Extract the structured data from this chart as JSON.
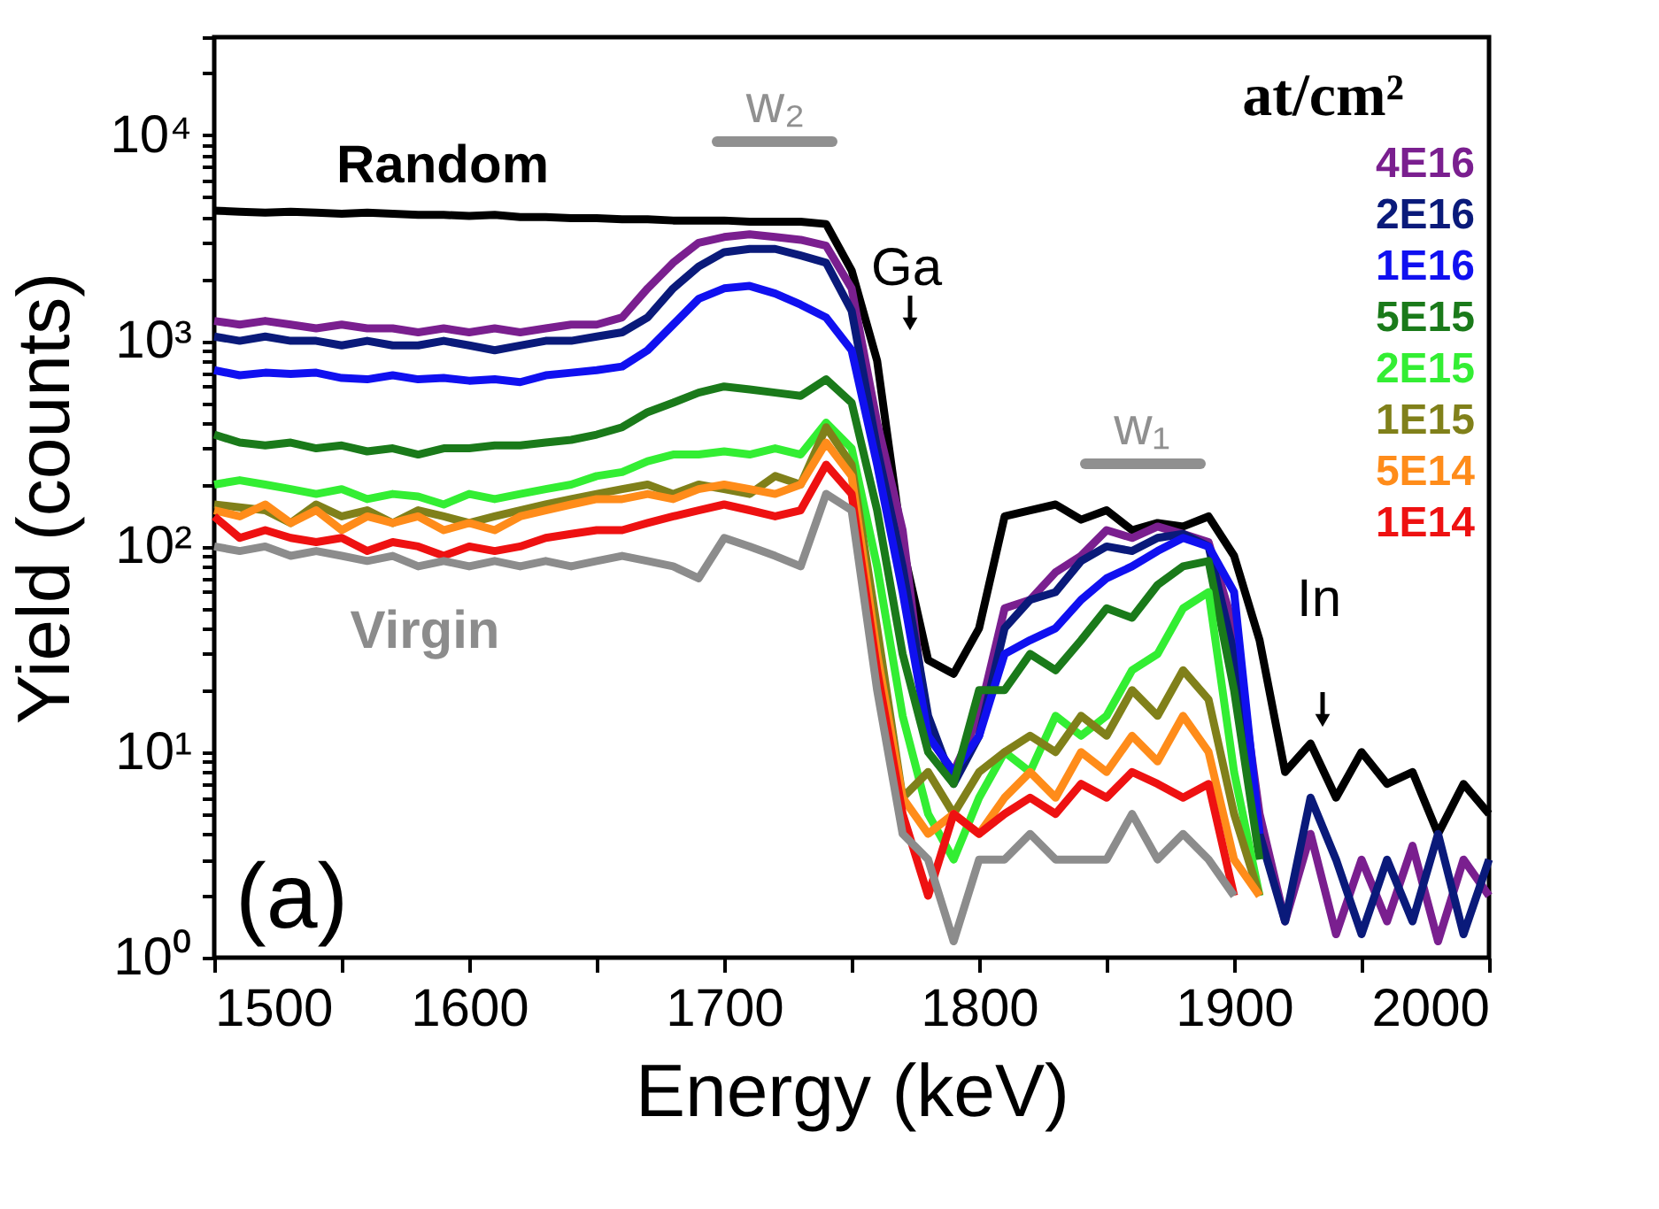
{
  "chart_data": {
    "type": "line",
    "xlabel": "Energy (keV)",
    "ylabel": "Yield (counts)",
    "legend_title": "at/cm²",
    "legend": "top right",
    "log": "y",
    "grid": false,
    "marker": "none",
    "line_style": "solid",
    "xlim": [
      1500,
      2000
    ],
    "ylim": [
      1,
      30000
    ],
    "xticks": [
      1500,
      {
        "value": 1550,
        "label": null
      },
      1600,
      {
        "value": 1650,
        "label": null
      },
      1700,
      {
        "value": 1750,
        "label": null
      },
      1800,
      {
        "value": 1850,
        "label": null
      },
      1900,
      {
        "value": 1950,
        "label": null
      },
      2000
    ],
    "yticks": [
      {
        "value": 1,
        "label": "10⁰"
      },
      {
        "value": 2,
        "label": null
      },
      {
        "value": 3,
        "label": null
      },
      {
        "value": 4,
        "label": null
      },
      {
        "value": 5,
        "label": null
      },
      {
        "value": 6,
        "label": null
      },
      {
        "value": 7,
        "label": null
      },
      {
        "value": 8,
        "label": null
      },
      {
        "value": 9,
        "label": null
      },
      {
        "value": 10,
        "label": "10¹"
      },
      {
        "value": 20,
        "label": null
      },
      {
        "value": 30,
        "label": null
      },
      {
        "value": 40,
        "label": null
      },
      {
        "value": 50,
        "label": null
      },
      {
        "value": 60,
        "label": null
      },
      {
        "value": 70,
        "label": null
      },
      {
        "value": 80,
        "label": null
      },
      {
        "value": 90,
        "label": null
      },
      {
        "value": 100,
        "label": "10²"
      },
      {
        "value": 200,
        "label": null
      },
      {
        "value": 300,
        "label": null
      },
      {
        "value": 400,
        "label": null
      },
      {
        "value": 500,
        "label": null
      },
      {
        "value": 600,
        "label": null
      },
      {
        "value": 700,
        "label": null
      },
      {
        "value": 800,
        "label": null
      },
      {
        "value": 900,
        "label": null
      },
      {
        "value": 1000,
        "label": "10³"
      },
      {
        "value": 2000,
        "label": null
      },
      {
        "value": 3000,
        "label": null
      },
      {
        "value": 4000,
        "label": null
      },
      {
        "value": 5000,
        "label": null
      },
      {
        "value": 6000,
        "label": null
      },
      {
        "value": 7000,
        "label": null
      },
      {
        "value": 8000,
        "label": null
      },
      {
        "value": 9000,
        "label": null
      },
      {
        "value": 10000,
        "label": "10⁴"
      },
      {
        "value": 20000,
        "label": null
      },
      {
        "value": 30000,
        "label": null
      }
    ],
    "x": [
      1500,
      1510,
      1520,
      1530,
      1540,
      1550,
      1560,
      1570,
      1580,
      1590,
      1600,
      1610,
      1620,
      1630,
      1640,
      1650,
      1660,
      1670,
      1680,
      1690,
      1700,
      1710,
      1720,
      1730,
      1740,
      1750,
      1760,
      1770,
      1780,
      1790,
      1800,
      1810,
      1820,
      1830,
      1840,
      1850,
      1860,
      1870,
      1880,
      1890,
      1900,
      1910,
      1920,
      1930,
      1940,
      1950,
      1960,
      1970,
      1980,
      1990,
      2000
    ],
    "series": [
      {
        "color": "#000000",
        "values": [
          4300,
          4250,
          4200,
          4250,
          4200,
          4150,
          4200,
          4150,
          4100,
          4100,
          4050,
          4100,
          4000,
          4000,
          3950,
          3950,
          3900,
          3900,
          3850,
          3850,
          3850,
          3800,
          3800,
          3800,
          3700,
          2200,
          800,
          100,
          28,
          24,
          40,
          140,
          150,
          160,
          135,
          150,
          120,
          130,
          125,
          140,
          90,
          35,
          8,
          11,
          6,
          10,
          7,
          8,
          4,
          7,
          5
        ]
      },
      {
        "name": "4E16",
        "color": "#7a1f8f",
        "values": [
          1250,
          1200,
          1250,
          1200,
          1150,
          1200,
          1150,
          1150,
          1100,
          1150,
          1100,
          1150,
          1100,
          1150,
          1200,
          1200,
          1300,
          1800,
          2400,
          3000,
          3200,
          3300,
          3200,
          3100,
          2900,
          1800,
          400,
          120,
          12,
          8,
          15,
          50,
          55,
          75,
          90,
          120,
          110,
          125,
          115,
          105,
          40,
          5,
          1.5,
          4,
          1.3,
          3,
          1.5,
          3.5,
          1.2,
          3,
          2
        ]
      },
      {
        "name": "2E16",
        "color": "#0a1a7a",
        "values": [
          1050,
          1000,
          1050,
          1000,
          1000,
          950,
          1000,
          950,
          950,
          1000,
          950,
          900,
          950,
          1000,
          1000,
          1050,
          1100,
          1300,
          1800,
          2300,
          2700,
          2800,
          2800,
          2600,
          2400,
          1400,
          300,
          80,
          15,
          7,
          12,
          40,
          55,
          60,
          85,
          100,
          95,
          110,
          115,
          100,
          30,
          4,
          1.5,
          6,
          3,
          1.3,
          3,
          1.5,
          4,
          1.3,
          3
        ]
      },
      {
        "name": "1E16",
        "color": "#1010f0",
        "values": [
          720,
          680,
          700,
          690,
          700,
          660,
          650,
          680,
          650,
          660,
          640,
          650,
          630,
          680,
          700,
          720,
          750,
          900,
          1200,
          1600,
          1800,
          1850,
          1700,
          1500,
          1300,
          900,
          250,
          60,
          12,
          8,
          12,
          30,
          35,
          40,
          55,
          70,
          80,
          95,
          110,
          100,
          60,
          4,
          null,
          null,
          null,
          null,
          null,
          null,
          null,
          null,
          null
        ]
      },
      {
        "name": "5E15",
        "color": "#1a7a1a",
        "values": [
          350,
          320,
          310,
          320,
          300,
          310,
          290,
          300,
          280,
          300,
          300,
          310,
          310,
          320,
          330,
          350,
          380,
          450,
          500,
          560,
          600,
          580,
          560,
          540,
          650,
          500,
          150,
          30,
          10,
          7,
          20,
          20,
          30,
          25,
          35,
          50,
          45,
          65,
          80,
          85,
          20,
          3,
          null,
          null,
          null,
          null,
          null,
          null,
          null,
          null,
          null
        ]
      },
      {
        "name": "2E15",
        "color": "#33ee33",
        "values": [
          200,
          210,
          200,
          190,
          180,
          190,
          170,
          180,
          175,
          160,
          180,
          170,
          180,
          190,
          200,
          220,
          230,
          260,
          280,
          280,
          290,
          280,
          300,
          280,
          400,
          300,
          80,
          15,
          5,
          3,
          6,
          10,
          8,
          15,
          12,
          15,
          25,
          30,
          50,
          60,
          8,
          2,
          null,
          null,
          null,
          null,
          null,
          null,
          null,
          null,
          null
        ]
      },
      {
        "name": "1E15",
        "color": "#80801a",
        "values": [
          160,
          155,
          150,
          130,
          160,
          140,
          150,
          130,
          150,
          140,
          130,
          140,
          150,
          160,
          170,
          180,
          190,
          200,
          180,
          200,
          190,
          180,
          220,
          200,
          380,
          250,
          40,
          6,
          8,
          5,
          8,
          10,
          12,
          10,
          15,
          12,
          20,
          15,
          25,
          18,
          5,
          2,
          null,
          null,
          null,
          null,
          null,
          null,
          null,
          null,
          null
        ]
      },
      {
        "name": "5E14",
        "color": "#ff8c1a",
        "values": [
          150,
          140,
          160,
          130,
          150,
          120,
          140,
          130,
          140,
          120,
          130,
          120,
          140,
          150,
          160,
          170,
          170,
          180,
          170,
          190,
          200,
          190,
          180,
          200,
          320,
          220,
          30,
          6,
          4,
          5,
          4,
          6,
          8,
          6,
          10,
          8,
          12,
          9,
          15,
          10,
          3,
          2,
          null,
          null,
          null,
          null,
          null,
          null,
          null,
          null,
          null
        ]
      },
      {
        "name": "1E14",
        "color": "#ee1111",
        "values": [
          140,
          110,
          120,
          110,
          105,
          110,
          95,
          105,
          100,
          90,
          100,
          95,
          100,
          110,
          115,
          120,
          120,
          130,
          140,
          150,
          160,
          150,
          140,
          150,
          250,
          180,
          25,
          5,
          2,
          5,
          4,
          5,
          6,
          5,
          7,
          6,
          8,
          7,
          6,
          7,
          2,
          null,
          null,
          null,
          null,
          null,
          null,
          null,
          null,
          null,
          null
        ]
      },
      {
        "color": "#8c8c8c",
        "values": [
          100,
          95,
          100,
          90,
          95,
          90,
          85,
          90,
          80,
          85,
          80,
          85,
          80,
          85,
          80,
          85,
          90,
          85,
          80,
          70,
          110,
          100,
          90,
          80,
          180,
          150,
          20,
          4,
          3,
          1.2,
          3,
          3,
          4,
          3,
          3,
          3,
          5,
          3,
          4,
          3,
          2,
          null,
          null,
          null,
          null,
          null,
          null,
          null,
          null,
          null,
          null
        ]
      }
    ],
    "annotations": [
      "Random",
      "Virgin",
      "Ga",
      "In",
      "(a)",
      "w₂",
      "w₁"
    ]
  }
}
